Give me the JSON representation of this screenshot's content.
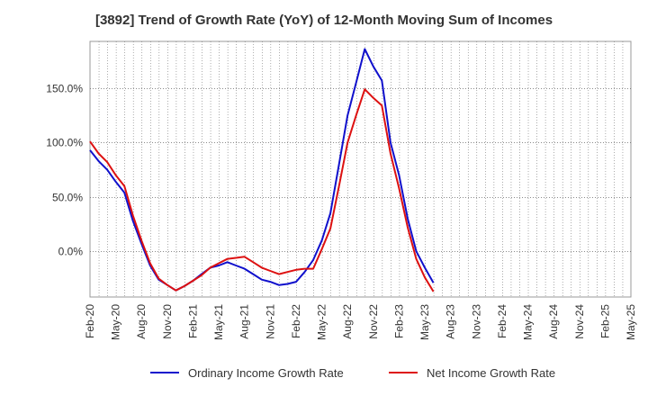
{
  "chart_data": {
    "type": "line",
    "title": "[3892]  Trend of Growth Rate (YoY) of 12-Month Moving Sum of Incomes",
    "x_labels": [
      "Feb-20",
      "May-20",
      "Aug-20",
      "Nov-20",
      "Feb-21",
      "May-21",
      "Aug-21",
      "Nov-21",
      "Feb-22",
      "May-22",
      "Aug-22",
      "Nov-22",
      "Feb-23",
      "May-23",
      "Aug-23",
      "Nov-23",
      "Feb-24",
      "May-24",
      "Aug-24",
      "Nov-24",
      "Feb-25",
      "May-25"
    ],
    "y_ticks": [
      0,
      50,
      100,
      150
    ],
    "y_tick_labels": [
      "0.0%",
      "50.0%",
      "100.0%",
      "150.0%"
    ],
    "ylim": [
      -42,
      193
    ],
    "grid": true,
    "legend_position": "bottom",
    "series": [
      {
        "name": "Ordinary Income Growth Rate",
        "color": "#1010cc",
        "values": [
          93,
          83,
          75,
          64,
          54,
          28,
          7,
          -13,
          -26,
          -31,
          -36,
          -32,
          -27,
          -21,
          -15,
          -13,
          -10,
          -13,
          -16,
          -21,
          -26,
          -28,
          -31,
          -30,
          -28,
          -19,
          -8,
          10,
          35,
          80,
          125,
          155,
          186,
          170,
          157,
          100,
          70,
          30,
          0,
          -15,
          -29
        ]
      },
      {
        "name": "Net Income Growth Rate",
        "color": "#dd1111",
        "values": [
          101,
          90,
          82,
          70,
          60,
          33,
          10,
          -11,
          -25,
          -31,
          -36,
          -32,
          -27,
          -22,
          -15,
          -11,
          -7,
          -6,
          -5,
          -10,
          -15,
          -18,
          -21,
          -19,
          -17,
          -16,
          -16,
          2,
          21,
          60,
          100,
          125,
          149,
          141,
          134,
          90,
          58,
          22,
          -7,
          -24,
          -37
        ]
      }
    ]
  }
}
